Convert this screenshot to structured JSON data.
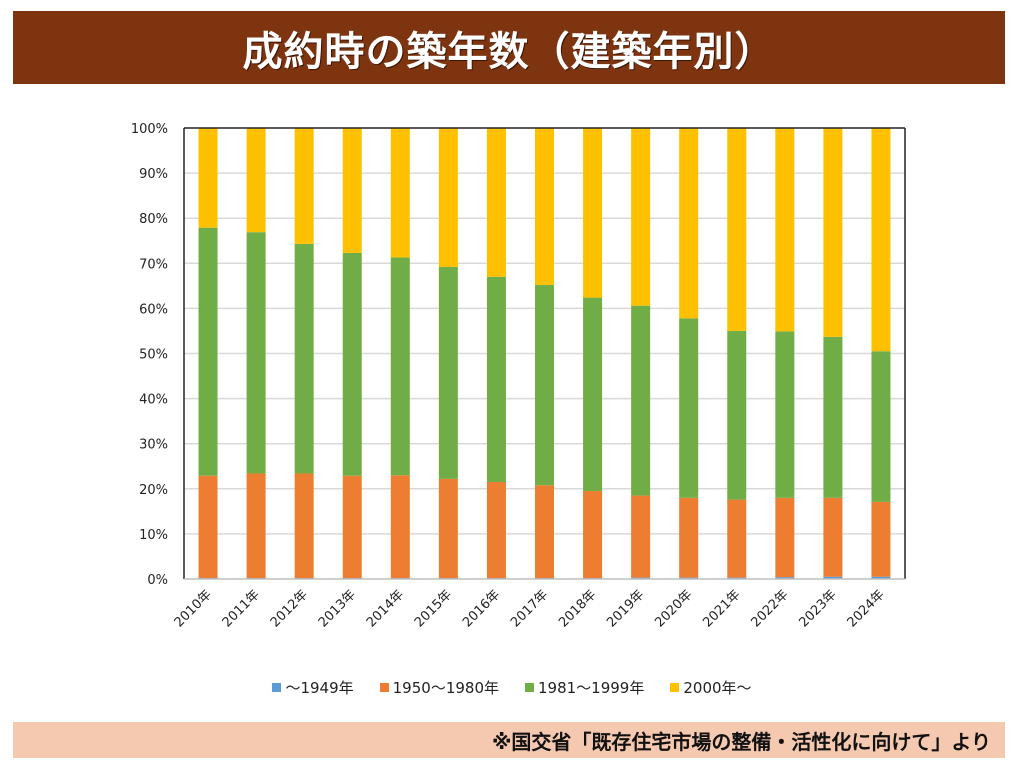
{
  "header": {
    "title": "成約時の築年数（建築年別）"
  },
  "footer": {
    "source": "※国交省「既存住宅市場の整備・活性化に向けて」より"
  },
  "chart_data": {
    "type": "bar",
    "stacked": true,
    "percent_stacked": true,
    "title": "成約時の築年数（建築年別）",
    "xlabel": "",
    "ylabel": "",
    "ylim": [
      0,
      100
    ],
    "yticks": [
      "0%",
      "10%",
      "20%",
      "30%",
      "40%",
      "50%",
      "60%",
      "70%",
      "80%",
      "90%",
      "100%"
    ],
    "grid": true,
    "legend_position": "bottom",
    "categories": [
      "2010年",
      "2011年",
      "2012年",
      "2013年",
      "2014年",
      "2015年",
      "2016年",
      "2017年",
      "2018年",
      "2019年",
      "2020年",
      "2021年",
      "2022年",
      "2023年",
      "2024年"
    ],
    "series": [
      {
        "name": "～1949年",
        "color": "#5b9bd5",
        "values": [
          0.2,
          0.2,
          0.2,
          0.2,
          0.2,
          0.2,
          0.2,
          0.2,
          0.2,
          0.3,
          0.3,
          0.3,
          0.4,
          0.5,
          0.5
        ]
      },
      {
        "name": "1950～1980年",
        "color": "#ed7d31",
        "values": [
          22.7,
          23.2,
          23.2,
          22.7,
          22.8,
          22.0,
          21.3,
          20.6,
          19.3,
          18.2,
          17.7,
          17.3,
          17.6,
          17.5,
          16.6
        ]
      },
      {
        "name": "1981～1999年",
        "color": "#70ad47",
        "values": [
          55.0,
          53.5,
          50.9,
          49.4,
          48.3,
          47.0,
          45.5,
          44.4,
          42.9,
          42.1,
          39.8,
          37.4,
          36.9,
          35.7,
          33.4
        ]
      },
      {
        "name": "2000年～",
        "color": "#ffc000",
        "values": [
          22.1,
          23.1,
          25.7,
          27.7,
          28.7,
          30.8,
          33.0,
          34.8,
          37.6,
          39.4,
          42.2,
          45.0,
          45.1,
          46.3,
          49.5
        ]
      }
    ]
  }
}
